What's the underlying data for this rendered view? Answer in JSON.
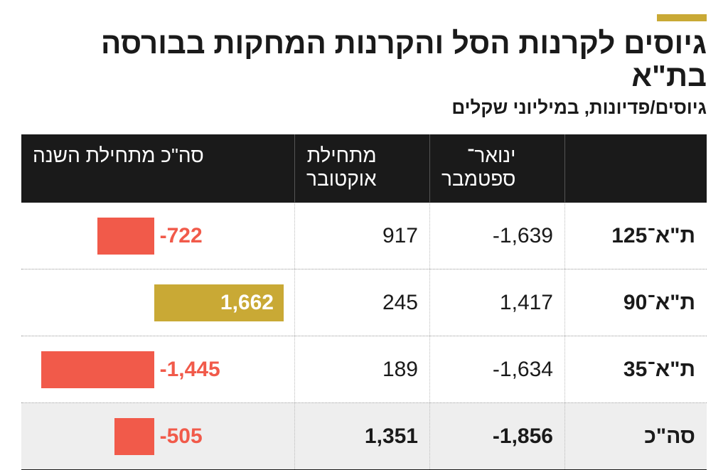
{
  "accent_color": "#c9a935",
  "title": "גיוסים לקרנות הסל והקרנות המחקות בבורסה בת\"א",
  "subtitle": "גיוסים/פדיונות, במיליוני שקלים",
  "header": {
    "col_label": "",
    "col_v1": "ינואר־\nספטמבר",
    "col_v2": "מתחילת\nאוקטובר",
    "col_bar": "סה\"כ מתחילת השנה"
  },
  "colors": {
    "header_bg": "#1a1a1a",
    "header_text": "#ffffff",
    "row_border": "#999999",
    "total_bg": "#eeeeee",
    "neg_bar": "#f15a4a",
    "neg_text": "#f15a4a",
    "pos_bar": "#c9a935",
    "pos_text": "#ffffff",
    "text": "#1a1a1a"
  },
  "chart": {
    "axis_min": -1700,
    "axis_max": 1800,
    "zero_fraction_from_right": 0.514
  },
  "rows": [
    {
      "label": "ת\"א־125",
      "v1": "-1,639",
      "v2": "917",
      "bar_value": -722,
      "bar_label": "-722",
      "total": false
    },
    {
      "label": "ת\"א־90",
      "v1": "1,417",
      "v2": "245",
      "bar_value": 1662,
      "bar_label": "1,662",
      "total": false
    },
    {
      "label": "ת\"א־35",
      "v1": "-1,634",
      "v2": "189",
      "bar_value": -1445,
      "bar_label": "-1,445",
      "total": false
    },
    {
      "label": "סה\"כ",
      "v1": "-1,856",
      "v2": "1,351",
      "bar_value": -505,
      "bar_label": "-505",
      "total": true
    }
  ]
}
